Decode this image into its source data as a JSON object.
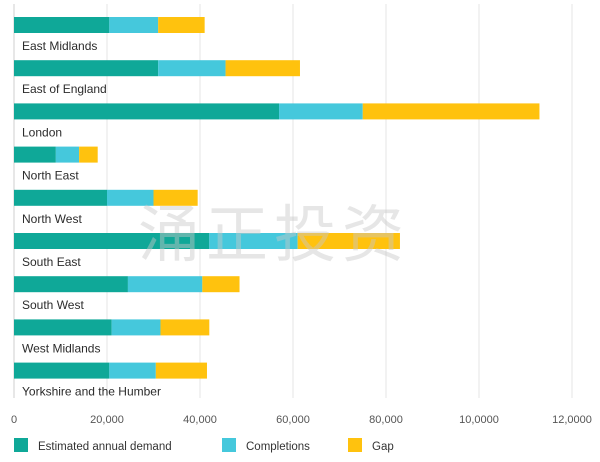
{
  "chart_data": {
    "type": "bar",
    "orientation": "horizontal",
    "stacked": true,
    "categories": [
      "East Midlands",
      "East of England",
      "London",
      "North East",
      "North West",
      "South East",
      "South West",
      "West Midlands",
      "Yorkshire and the Humber"
    ],
    "series": [
      {
        "name": "Estimated annual demand",
        "color": "#0fa898",
        "values": [
          20500,
          31000,
          57000,
          9000,
          20000,
          42000,
          24500,
          21000,
          20500
        ]
      },
      {
        "name": "Completions",
        "color": "#45c8dc",
        "values": [
          10500,
          14500,
          18000,
          5000,
          10000,
          19000,
          16000,
          10500,
          10000
        ]
      },
      {
        "name": "Gap",
        "color": "#ffc20e",
        "values": [
          10000,
          16000,
          38000,
          4000,
          9500,
          22000,
          8000,
          10500,
          11000
        ]
      }
    ],
    "x_ticks": [
      0,
      20000,
      40000,
      60000,
      80000,
      100000,
      120000
    ],
    "x_tick_labels": [
      "0",
      "20,000",
      "40,000",
      "60,000",
      "80,000",
      "10,0000",
      "12,0000"
    ],
    "xlim": [
      0,
      120000
    ],
    "grid": "vertical",
    "legend_position": "bottom"
  },
  "watermark": "涌正投资"
}
